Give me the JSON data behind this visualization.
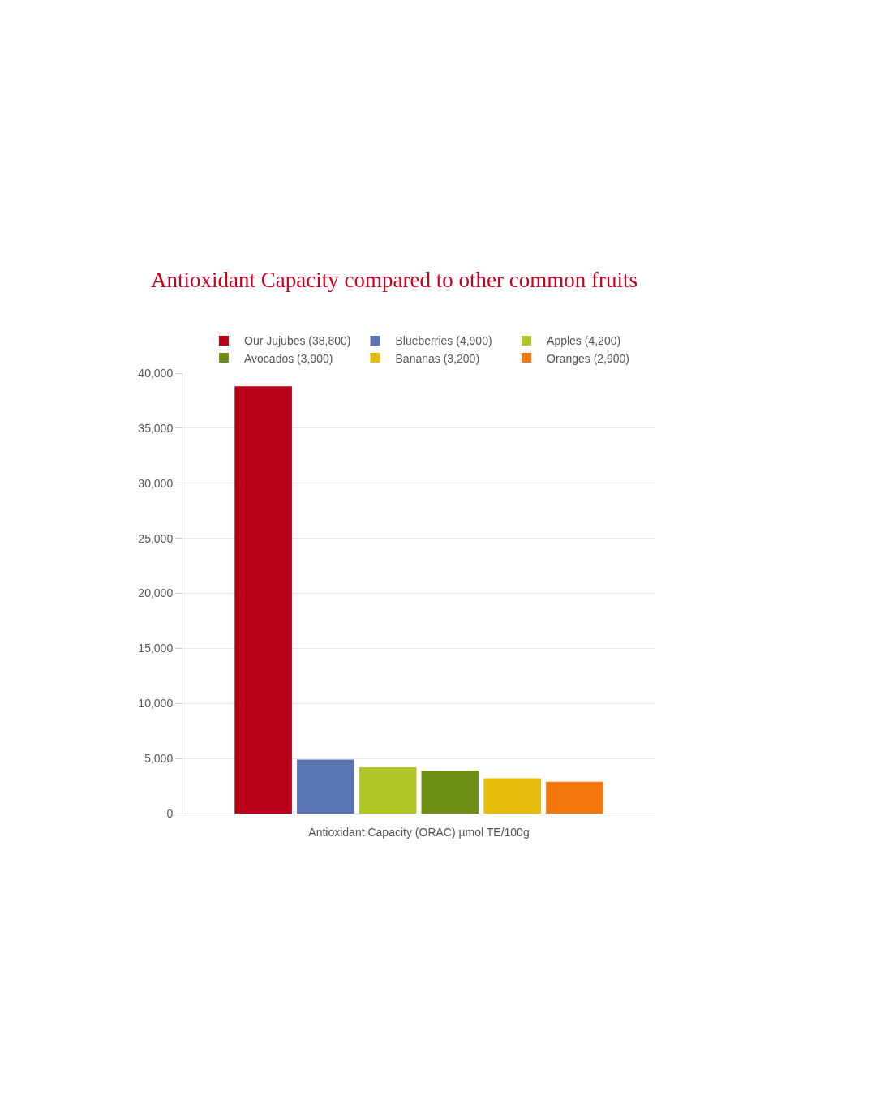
{
  "chart_data": {
    "type": "bar",
    "title": "Antioxidant Capacity compared to other common fruits",
    "xlabel": "Antioxidant Capacity (ORAC) µmol TE/100g",
    "categories": [
      null
    ],
    "series": [
      {
        "name": "Our Jujubes (38,800)",
        "color": "#b8001a",
        "values": [
          38800
        ]
      },
      {
        "name": "Blueberries (4,900)",
        "color": "#5b74b4",
        "values": [
          4900
        ]
      },
      {
        "name": "Apples (4,200)",
        "color": "#b0c626",
        "values": [
          4200
        ]
      },
      {
        "name": "Avocados (3,900)",
        "color": "#6b8e14",
        "values": [
          3900
        ]
      },
      {
        "name": "Bananas (3,200)",
        "color": "#e6bc0c",
        "values": [
          3200
        ]
      },
      {
        "name": "Oranges (2,900)",
        "color": "#f3770f",
        "values": [
          2900
        ]
      }
    ],
    "ylim": [
      0,
      40000
    ],
    "yticks": [
      {
        "value": 0,
        "label": "0"
      },
      {
        "value": 5000,
        "label": "5,000"
      },
      {
        "value": 10000,
        "label": "10,000"
      },
      {
        "value": 15000,
        "label": "15,000"
      },
      {
        "value": 20000,
        "label": "20,000"
      },
      {
        "value": 25000,
        "label": "25,000"
      },
      {
        "value": 30000,
        "label": "30,000"
      },
      {
        "value": 35000,
        "label": "35,000"
      },
      {
        "value": 40000,
        "label": "40,000"
      }
    ],
    "grid": "y",
    "legend": "top"
  }
}
